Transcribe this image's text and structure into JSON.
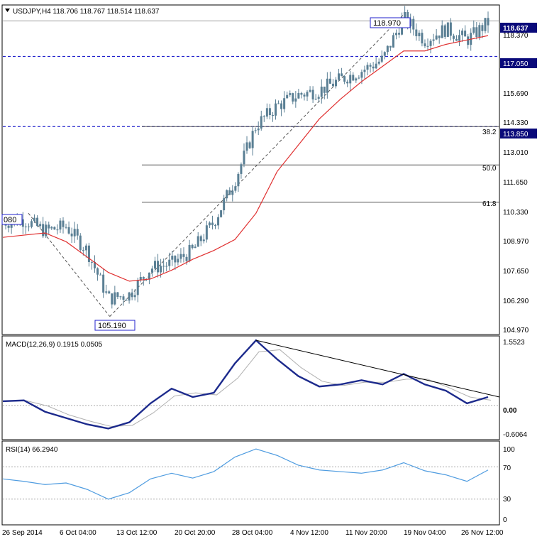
{
  "colors": {
    "candle": "#5a7f94",
    "ma": "#e03030",
    "hline": "#2222cc",
    "fib": "#555555",
    "macd": "#1c2a8c",
    "signal": "#b0b0b0",
    "rsi": "#4f9ce0",
    "trendline": "#000000",
    "price_box_bg": "#0a0a7a"
  },
  "price_panel": {
    "header": "USDJPY,H4  118.706 118.767 118.514 118.637",
    "y_ticks": [
      "118.370",
      "117.050",
      "115.690",
      "114.330",
      "113.010",
      "111.650",
      "110.330",
      "108.970",
      "107.650",
      "106.290",
      "104.970"
    ],
    "current_price": "118.637",
    "hlines": [
      {
        "label": "117.050",
        "value": 117.05
      },
      {
        "label": "113.850",
        "value": 113.85
      }
    ],
    "fib_levels": [
      {
        "label": "38.2",
        "value": 113.85
      },
      {
        "label": "50.0",
        "value": 112.1
      },
      {
        "label": "61.8",
        "value": 110.4
      }
    ],
    "annotations": {
      "high": "118.970",
      "low": "105.190",
      "left": "080"
    }
  },
  "macd_panel": {
    "header": "MACD(12,26,9) 0.1915 0.0505",
    "y_ticks": [
      "1.5523",
      "0.00",
      "-0.6064"
    ]
  },
  "rsi_panel": {
    "header": "RSI(14) 66.2940",
    "y_ticks": [
      "100",
      "70",
      "30",
      "0"
    ]
  },
  "x_axis": {
    "labels": [
      "26 Sep 2014",
      "6 Oct 04:00",
      "13 Oct 12:00",
      "20 Oct 20:00",
      "28 Oct 04:00",
      "4 Nov 12:00",
      "11 Nov 20:00",
      "19 Nov 04:00",
      "26 Nov 12:00"
    ]
  },
  "chart_data": {
    "type": "line",
    "series": [
      {
        "name": "USDJPY,H4",
        "x": [
          "26 Sep",
          "30 Sep",
          "3 Oct",
          "7 Oct",
          "10 Oct",
          "13 Oct",
          "16 Oct",
          "20 Oct",
          "23 Oct",
          "27 Oct",
          "30 Oct",
          "31 Oct",
          "3 Nov",
          "5 Nov",
          "7 Nov",
          "10 Nov",
          "12 Nov",
          "14 Nov",
          "17 Nov",
          "19 Nov",
          "21 Nov",
          "24 Nov",
          "26 Nov",
          "28 Nov"
        ],
        "values": [
          109.5,
          109.6,
          109.1,
          109.3,
          108.2,
          106.0,
          106.2,
          107.4,
          107.6,
          108.2,
          109.5,
          111.4,
          113.9,
          114.8,
          115.3,
          115.5,
          116.0,
          116.4,
          116.9,
          118.8,
          117.8,
          118.3,
          117.8,
          118.6
        ]
      },
      {
        "name": "MA",
        "values": [
          108.8,
          108.9,
          109.0,
          108.6,
          107.9,
          107.2,
          106.8,
          106.9,
          107.3,
          107.8,
          108.2,
          108.7,
          109.9,
          111.8,
          113.0,
          114.2,
          115.1,
          115.9,
          116.6,
          117.3,
          117.3,
          117.6,
          117.8,
          118.0
        ]
      },
      {
        "name": "MACD(12,26,9)",
        "values": [
          0.1,
          0.12,
          -0.15,
          -0.3,
          -0.45,
          -0.55,
          -0.4,
          0.05,
          0.4,
          0.2,
          0.3,
          1.0,
          1.55,
          1.1,
          0.7,
          0.45,
          0.5,
          0.6,
          0.5,
          0.75,
          0.5,
          0.35,
          0.05,
          0.2
        ]
      },
      {
        "name": "RSI(14)",
        "values": [
          55,
          52,
          48,
          50,
          42,
          30,
          38,
          55,
          62,
          56,
          64,
          82,
          92,
          84,
          72,
          66,
          64,
          62,
          66,
          75,
          65,
          60,
          52,
          66
        ]
      }
    ],
    "price_range": [
      104.4,
      119.3
    ],
    "macd_range": [
      -0.78,
      1.62
    ],
    "rsi_range": [
      0,
      100
    ],
    "grid": false
  }
}
